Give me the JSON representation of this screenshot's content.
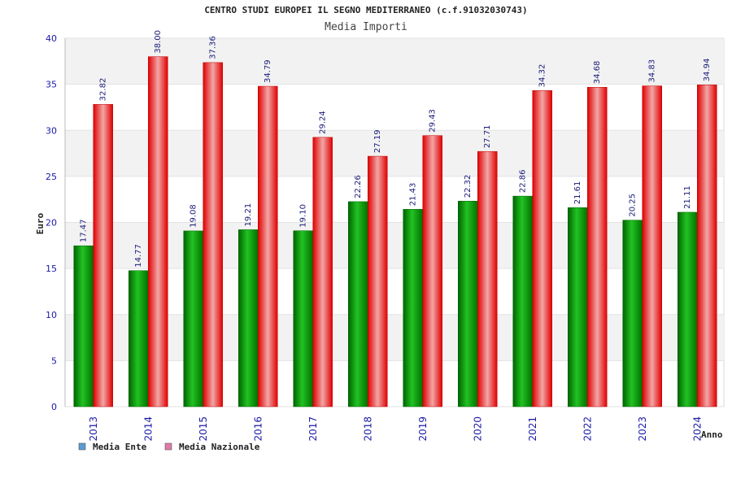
{
  "chart_data": {
    "type": "bar",
    "title": "CENTRO STUDI EUROPEI IL SEGNO MEDITERRANEO (c.f.91032030743)",
    "subtitle": "Media Importi",
    "xlabel": "Anno",
    "ylabel": "Euro",
    "ylim": [
      0,
      40
    ],
    "yticks": [
      "0",
      "5",
      "10",
      "15",
      "20",
      "25",
      "30",
      "35",
      "40"
    ],
    "categories": [
      "2013",
      "2014",
      "2015",
      "2016",
      "2017",
      "2018",
      "2019",
      "2020",
      "2021",
      "2022",
      "2023",
      "2024"
    ],
    "series": [
      {
        "name": "Media Ente",
        "legend_color": "#5b9bd5",
        "values": [
          17.47,
          14.77,
          19.08,
          19.21,
          19.1,
          22.26,
          21.43,
          22.32,
          22.86,
          21.61,
          20.25,
          21.11
        ],
        "labels": [
          "17.47",
          "14.77",
          "19.08",
          "19.21",
          "19.10",
          "22.26",
          "21.43",
          "22.32",
          "22.86",
          "21.61",
          "20.25",
          "21.11"
        ]
      },
      {
        "name": "Media Nazionale",
        "legend_color": "#e07aa8",
        "values": [
          32.82,
          38.0,
          37.36,
          34.79,
          29.24,
          27.19,
          29.43,
          27.71,
          34.32,
          34.68,
          34.83,
          34.94
        ],
        "labels": [
          "32.82",
          "38.00",
          "37.36",
          "34.79",
          "29.24",
          "27.19",
          "29.43",
          "27.71",
          "34.32",
          "34.68",
          "34.83",
          "34.94"
        ]
      }
    ],
    "grid": true,
    "legend_position": "bottom-left"
  }
}
